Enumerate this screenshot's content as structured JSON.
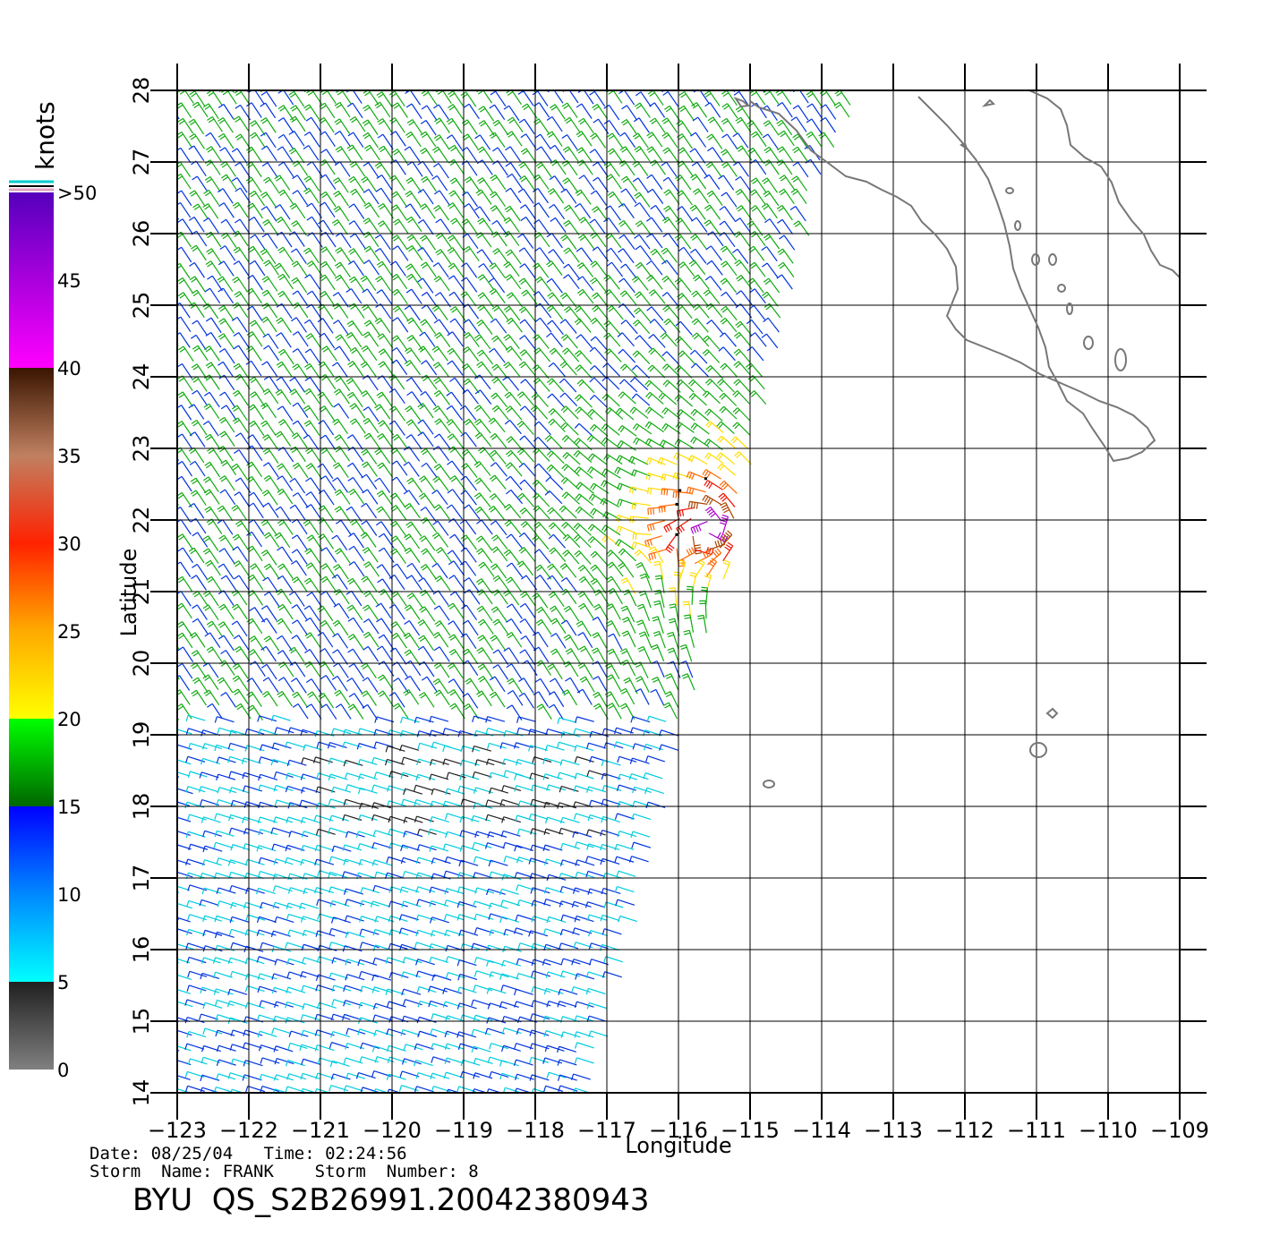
{
  "map": {
    "type": "wind-vector-map",
    "lon_range": [
      -123,
      -109
    ],
    "lat_range": [
      14,
      28
    ],
    "lon_ticks": [
      -123,
      -122,
      -121,
      -120,
      -119,
      -118,
      -117,
      -116,
      -115,
      -114,
      -113,
      -112,
      -111,
      -110,
      -109
    ],
    "lat_ticks": [
      14,
      15,
      16,
      17,
      18,
      19,
      20,
      21,
      22,
      23,
      24,
      25,
      26,
      27,
      28
    ],
    "grid": true,
    "xlabel": "Longitude",
    "ylabel": "Latitude",
    "storm_center": {
      "lon": -115.5,
      "lat": 21.9
    },
    "swath_east_edge": {
      "north_lon": -114,
      "north_lat": 27,
      "south_lon": -116.5,
      "south_lat": 17
    },
    "coastline_color": "#777777"
  },
  "colorbar": {
    "unit": "knots",
    "labels": [
      "0",
      "5",
      "10",
      "15",
      "20",
      "25",
      "30",
      "35",
      "40",
      "45",
      ">50"
    ],
    "stops": [
      {
        "value": 0,
        "color": "#808080"
      },
      {
        "value": 5,
        "color": "#202020"
      },
      {
        "value": 5.01,
        "color": "#00ffff"
      },
      {
        "value": 10,
        "color": "#0088ff"
      },
      {
        "value": 15,
        "color": "#0000ff"
      },
      {
        "value": 15.01,
        "color": "#006600"
      },
      {
        "value": 20,
        "color": "#00ff00"
      },
      {
        "value": 20.01,
        "color": "#ffff00"
      },
      {
        "value": 25,
        "color": "#ffaa00"
      },
      {
        "value": 30,
        "color": "#ff2200"
      },
      {
        "value": 35,
        "color": "#c08060"
      },
      {
        "value": 40,
        "color": "#3a1500"
      },
      {
        "value": 40.01,
        "color": "#ff00ff"
      },
      {
        "value": 50,
        "color": "#5500bb"
      }
    ]
  },
  "footer": {
    "meta_line1": "Date: 08/25/04   Time: 02:24:56",
    "meta_line2": "Storm  Name: FRANK    Storm  Number: 8",
    "title": "BYU  QS_S2B26991.20042380943"
  }
}
